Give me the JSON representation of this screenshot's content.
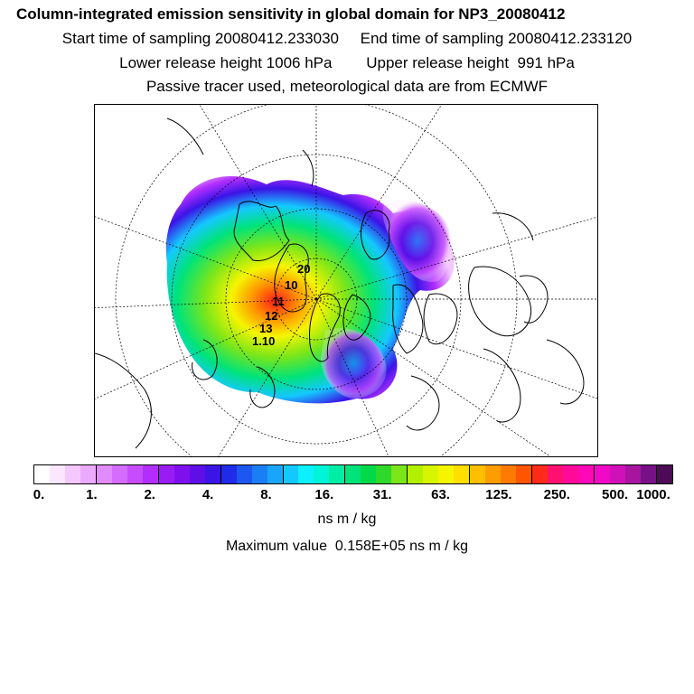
{
  "header": {
    "title": "Column-integrated emission sensitivity in global domain for NP3_20080412",
    "sampling_line": "Start time of sampling 20080412.233030     End time of sampling 20080412.233120",
    "release_line": "Lower release height 1006 hPa        Upper release height  991 hPa",
    "tracer_line": "Passive tracer used, meteorological data are from ECMWF"
  },
  "legend": {
    "colors": [
      "#ffffff",
      "#fbe6ff",
      "#f4c8ff",
      "#ecaaff",
      "#e08cff",
      "#d46cff",
      "#c64dff",
      "#b22eff",
      "#9a1cf5",
      "#7f10ee",
      "#5e0ee6",
      "#3b14e6",
      "#1f2be8",
      "#1c57f0",
      "#1a7ff5",
      "#18a5fa",
      "#14c8ff",
      "#0cf0ff",
      "#00f5d8",
      "#00eda6",
      "#00e37a",
      "#00d94a",
      "#2fd92a",
      "#7ae61a",
      "#b0f000",
      "#d8f500",
      "#f5f500",
      "#ffde00",
      "#ffbf00",
      "#ff9d00",
      "#ff7a00",
      "#ff5500",
      "#ff2a1a",
      "#ff1070",
      "#ff0a98",
      "#ff08b8",
      "#f00ac8",
      "#d010b8",
      "#a814a0",
      "#781088",
      "#4d0a55"
    ],
    "tick_labels": [
      "0.",
      "1.",
      "2.",
      "4.",
      "8.",
      "16.",
      "31.",
      "63.",
      "125.",
      "250.",
      "500.",
      "1000."
    ],
    "unit": "ns m / kg",
    "max_value_text": "Maximum value  0.158E+05 ns m / kg"
  },
  "map": {
    "contour_labels": [
      "20",
      "10",
      "11",
      "12",
      "13",
      "1.10"
    ]
  }
}
